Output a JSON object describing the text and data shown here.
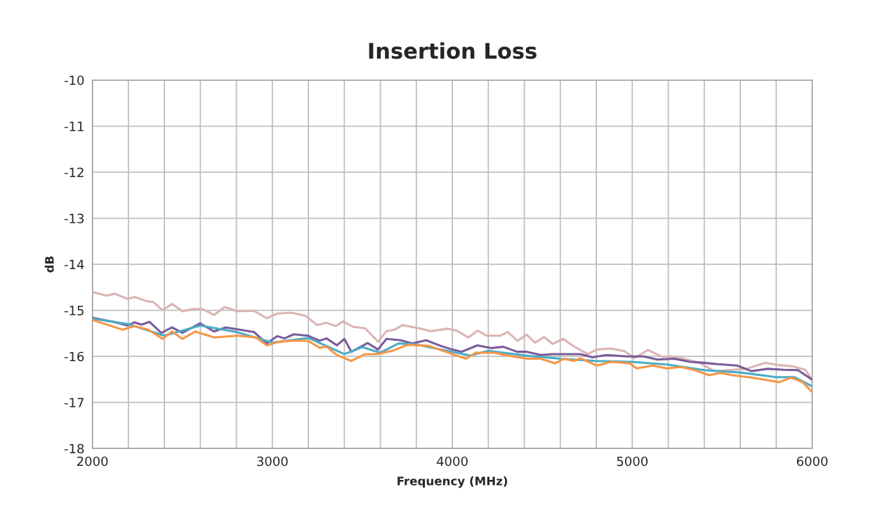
{
  "chart_data": {
    "type": "line",
    "title": "Insertion Loss",
    "xlabel": "Frequency (MHz)",
    "ylabel": "dB",
    "xlim": [
      2000,
      6000
    ],
    "ylim": [
      -18,
      -10
    ],
    "xticks": [
      2000,
      {
        "value": 2200,
        "label": null
      },
      {
        "value": 2400,
        "label": null
      },
      {
        "value": 2600,
        "label": null
      },
      {
        "value": 2800,
        "label": null
      },
      3000,
      {
        "value": 3200,
        "label": null
      },
      {
        "value": 3400,
        "label": null
      },
      {
        "value": 3600,
        "label": null
      },
      {
        "value": 3800,
        "label": null
      },
      4000,
      {
        "value": 4200,
        "label": null
      },
      {
        "value": 4400,
        "label": null
      },
      {
        "value": 4600,
        "label": null
      },
      {
        "value": 4800,
        "label": null
      },
      5000,
      {
        "value": 5200,
        "label": null
      },
      {
        "value": 5400,
        "label": null
      },
      {
        "value": 5600,
        "label": null
      },
      {
        "value": 5800,
        "label": null
      },
      6000
    ],
    "yticks": [
      -18,
      -17,
      -16,
      -15,
      -14,
      -13,
      -12,
      -11,
      -10
    ],
    "grid": true,
    "marker": "none",
    "line_style": "solid",
    "series": [
      {
        "color": "#dbb4b4",
        "x": [
          2000,
          2078,
          2125,
          2195,
          2234,
          2300,
          2339,
          2390,
          2442,
          2500,
          2559,
          2611,
          2676,
          2735,
          2806,
          2897,
          2969,
          3028,
          3106,
          3184,
          3249,
          3301,
          3353,
          3392,
          3450,
          3516,
          3587,
          3634,
          3680,
          3723,
          3817,
          3879,
          3973,
          4023,
          4090,
          4140,
          4191,
          4269,
          4308,
          4362,
          4413,
          4460,
          4511,
          4557,
          4616,
          4674,
          4752,
          4803,
          4881,
          4959,
          5010,
          5088,
          5166,
          5220,
          5298,
          5376,
          5454,
          5556,
          5634,
          5739,
          5817,
          5895,
          5961,
          6000
        ],
        "values": [
          -14.6,
          -14.68,
          -14.64,
          -14.75,
          -14.71,
          -14.8,
          -14.82,
          -15.0,
          -14.86,
          -15.02,
          -14.97,
          -14.97,
          -15.1,
          -14.93,
          -15.02,
          -15.01,
          -15.17,
          -15.07,
          -15.05,
          -15.12,
          -15.32,
          -15.27,
          -15.34,
          -15.24,
          -15.36,
          -15.39,
          -15.68,
          -15.45,
          -15.42,
          -15.32,
          -15.39,
          -15.45,
          -15.4,
          -15.44,
          -15.59,
          -15.44,
          -15.55,
          -15.55,
          -15.47,
          -15.66,
          -15.53,
          -15.7,
          -15.58,
          -15.73,
          -15.62,
          -15.78,
          -15.95,
          -15.85,
          -15.83,
          -15.89,
          -16.04,
          -15.86,
          -16.01,
          -16.0,
          -16.06,
          -16.14,
          -16.32,
          -16.29,
          -16.27,
          -16.14,
          -16.19,
          -16.22,
          -16.29,
          -16.51
        ]
      },
      {
        "color": "#7a5c9a",
        "x": [
          2000,
          2117,
          2195,
          2234,
          2273,
          2318,
          2383,
          2442,
          2500,
          2598,
          2676,
          2741,
          2832,
          2897,
          2969,
          3028,
          3067,
          3119,
          3197,
          3262,
          3301,
          3359,
          3400,
          3439,
          3530,
          3587,
          3634,
          3712,
          3777,
          3855,
          3934,
          3999,
          4051,
          4140,
          4218,
          4282,
          4360,
          4413,
          4491,
          4557,
          4674,
          4713,
          4778,
          4856,
          4973,
          5063,
          5140,
          5232,
          5322,
          5400,
          5478,
          5583,
          5661,
          5752,
          5843,
          5921,
          6000
        ],
        "values": [
          -15.16,
          -15.25,
          -15.33,
          -15.26,
          -15.31,
          -15.25,
          -15.49,
          -15.37,
          -15.49,
          -15.28,
          -15.46,
          -15.37,
          -15.43,
          -15.47,
          -15.72,
          -15.56,
          -15.61,
          -15.52,
          -15.55,
          -15.66,
          -15.61,
          -15.76,
          -15.62,
          -15.9,
          -15.71,
          -15.85,
          -15.62,
          -15.65,
          -15.72,
          -15.65,
          -15.77,
          -15.85,
          -15.9,
          -15.76,
          -15.82,
          -15.79,
          -15.9,
          -15.9,
          -15.97,
          -15.95,
          -15.95,
          -15.95,
          -16.02,
          -15.97,
          -16.0,
          -16.0,
          -16.07,
          -16.05,
          -16.12,
          -16.14,
          -16.17,
          -16.2,
          -16.32,
          -16.27,
          -16.29,
          -16.3,
          -16.51
        ]
      },
      {
        "color": "#4bacc6",
        "x": [
          2000,
          2200,
          2400,
          2600,
          2800,
          3000,
          3200,
          3400,
          3500,
          3600,
          3700,
          3800,
          4000,
          4100,
          4200,
          4400,
          4600,
          4800,
          5000,
          5200,
          5400,
          5600,
          5800,
          5900,
          6000
        ],
        "values": [
          -15.18,
          -15.3,
          -15.55,
          -15.33,
          -15.47,
          -15.7,
          -15.6,
          -15.95,
          -15.8,
          -15.92,
          -15.72,
          -15.74,
          -15.9,
          -15.98,
          -15.88,
          -15.98,
          -16.05,
          -16.1,
          -16.12,
          -16.18,
          -16.3,
          -16.35,
          -16.45,
          -16.45,
          -16.65
        ]
      },
      {
        "color": "#f79646",
        "x": [
          2000,
          2169,
          2234,
          2312,
          2390,
          2442,
          2500,
          2572,
          2676,
          2806,
          2910,
          2969,
          3028,
          3106,
          3197,
          3262,
          3301,
          3359,
          3439,
          3516,
          3582,
          3673,
          3751,
          3868,
          3999,
          4077,
          4129,
          4233,
          4335,
          4413,
          4491,
          4570,
          4622,
          4674,
          4713,
          4803,
          4881,
          4985,
          5024,
          5114,
          5192,
          5270,
          5348,
          5426,
          5491,
          5556,
          5661,
          5739,
          5817,
          5882,
          5947,
          6000
        ],
        "values": [
          -15.21,
          -15.42,
          -15.34,
          -15.42,
          -15.62,
          -15.46,
          -15.62,
          -15.46,
          -15.59,
          -15.55,
          -15.59,
          -15.76,
          -15.69,
          -15.66,
          -15.66,
          -15.81,
          -15.79,
          -15.97,
          -16.1,
          -15.95,
          -15.95,
          -15.87,
          -15.75,
          -15.77,
          -15.95,
          -16.05,
          -15.92,
          -15.92,
          -16.0,
          -16.05,
          -16.05,
          -16.15,
          -16.05,
          -16.1,
          -16.04,
          -16.2,
          -16.12,
          -16.15,
          -16.26,
          -16.2,
          -16.26,
          -16.23,
          -16.3,
          -16.41,
          -16.36,
          -16.41,
          -16.46,
          -16.51,
          -16.56,
          -16.46,
          -16.56,
          -16.78
        ]
      }
    ]
  }
}
